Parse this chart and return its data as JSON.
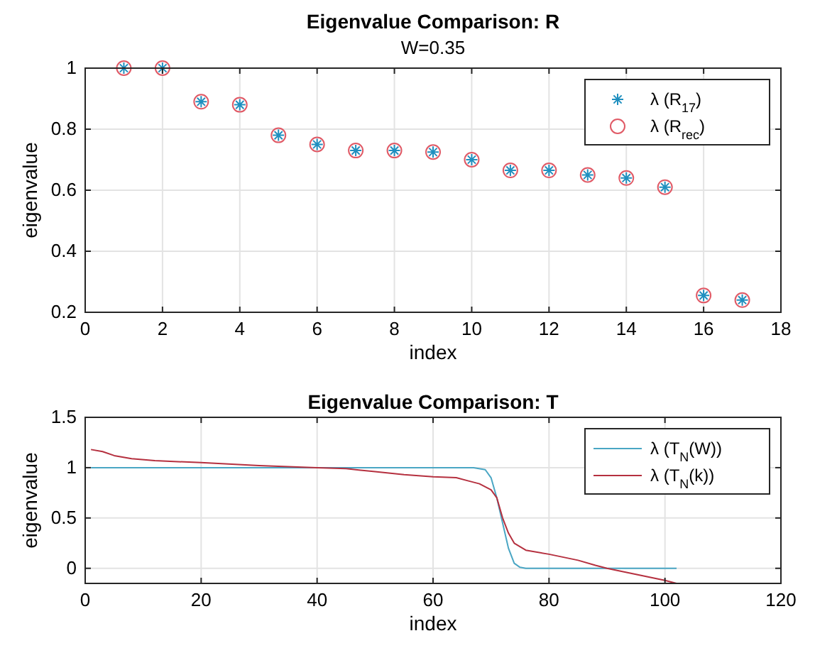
{
  "chart_data": [
    {
      "type": "scatter",
      "title": "Eigenvalue Comparison: R",
      "subtitle": "W=0.35",
      "xlabel": "index",
      "ylabel": "eigenvalue",
      "xlim": [
        0,
        18
      ],
      "xticks": [
        0,
        2,
        4,
        6,
        8,
        10,
        12,
        14,
        16,
        18
      ],
      "ylim": [
        0.2,
        1
      ],
      "yticks": [
        0.2,
        0.4,
        0.6,
        0.8,
        1
      ],
      "grid": true,
      "legend": "top right",
      "x": [
        1,
        2,
        3,
        4,
        5,
        6,
        7,
        8,
        9,
        10,
        11,
        12,
        13,
        14,
        15,
        16,
        17
      ],
      "series": [
        {
          "name": "λ (R$_{17}$)",
          "color": "#1f8fbf",
          "marker": "cross",
          "values": [
            1,
            1,
            0.89,
            0.88,
            0.78,
            0.75,
            0.73,
            0.73,
            0.725,
            0.7,
            0.665,
            0.665,
            0.65,
            0.64,
            0.61,
            0.255,
            0.24
          ]
        },
        {
          "name": "λ (R$_{rec}$)",
          "color": "#e05a66",
          "marker": "circle",
          "values": [
            1,
            1,
            0.89,
            0.88,
            0.78,
            0.75,
            0.73,
            0.73,
            0.725,
            0.7,
            0.665,
            0.665,
            0.65,
            0.64,
            0.61,
            0.255,
            0.24
          ]
        }
      ]
    },
    {
      "type": "line",
      "title": "Eigenvalue Comparison: T",
      "xlabel": "index",
      "ylabel": "eigenvalue",
      "xlim": [
        0,
        120
      ],
      "xticks": [
        0,
        20,
        40,
        60,
        80,
        100,
        120
      ],
      "ylim": [
        -0.15,
        1.5
      ],
      "yticks": [
        0,
        0.5,
        1,
        1.5
      ],
      "grid": true,
      "legend": "top right",
      "series": [
        {
          "name": "λ (T$_{N}$(W))",
          "color": "#4aa6c4",
          "x": [
            1,
            67,
            69,
            70,
            71,
            72,
            73,
            74,
            75,
            76,
            102
          ],
          "values": [
            1,
            1,
            0.98,
            0.9,
            0.7,
            0.45,
            0.2,
            0.05,
            0.01,
            0,
            0
          ]
        },
        {
          "name": "λ (T$_{N}$(k))",
          "color": "#b5303f",
          "x": [
            1,
            3,
            5,
            8,
            12,
            20,
            30,
            40,
            45,
            50,
            55,
            60,
            64,
            66,
            68,
            70,
            71,
            72,
            73,
            74,
            76,
            80,
            85,
            88,
            90,
            95,
            100,
            102
          ],
          "values": [
            1.18,
            1.16,
            1.12,
            1.09,
            1.07,
            1.05,
            1.02,
            1.0,
            0.99,
            0.96,
            0.93,
            0.91,
            0.9,
            0.87,
            0.84,
            0.78,
            0.7,
            0.5,
            0.35,
            0.25,
            0.18,
            0.14,
            0.08,
            0.03,
            0,
            -0.06,
            -0.12,
            -0.15
          ]
        }
      ]
    }
  ]
}
